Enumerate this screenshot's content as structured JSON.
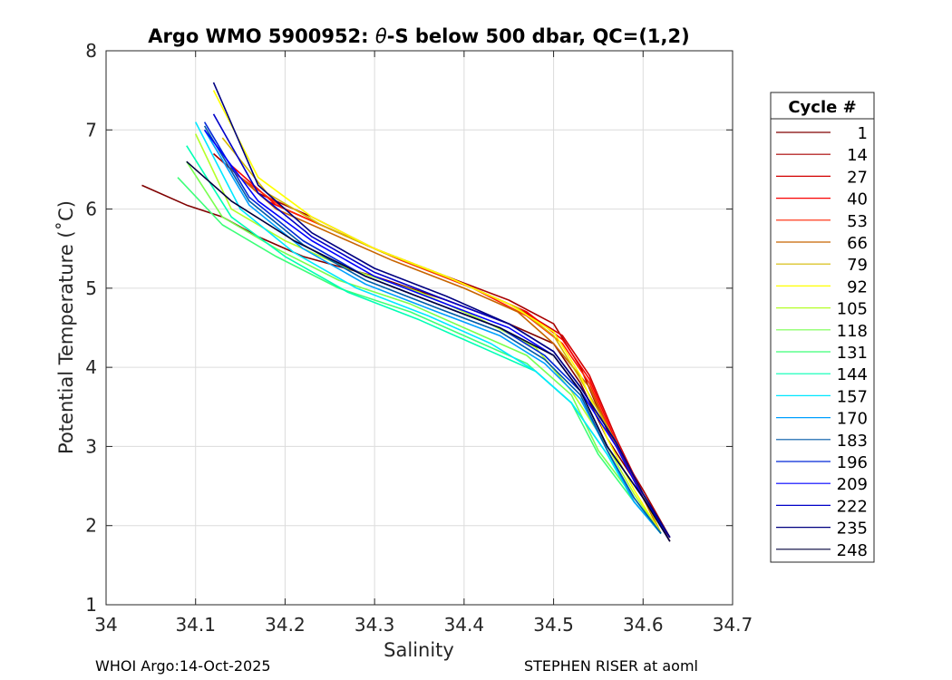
{
  "chart_data": {
    "type": "line",
    "title": "Argo WMO 5900952: θ-S below 500 dbar,  QC=(1,2)",
    "title_parts": {
      "prefix": "Argo WMO 5900952: ",
      "symbol": "θ",
      "suffix": "-S below 500 dbar,  QC=(1,2)"
    },
    "xlabel": "Salinity",
    "ylabel": "Potential Temperature (˚C)",
    "xlim": [
      34,
      34.7
    ],
    "ylim": [
      1,
      8
    ],
    "xticks": [
      "34",
      "34.1",
      "34.2",
      "34.3",
      "34.4",
      "34.5",
      "34.6",
      "34.7"
    ],
    "yticks": [
      "1",
      "2",
      "3",
      "4",
      "5",
      "6",
      "7",
      "8"
    ],
    "grid": true,
    "legend": {
      "title": "Cycle #",
      "placement": "right-outside",
      "entries": [
        {
          "label": "1",
          "color": "#800000"
        },
        {
          "label": "14",
          "color": "#a80000"
        },
        {
          "label": "27",
          "color": "#d20000"
        },
        {
          "label": "40",
          "color": "#fa0000"
        },
        {
          "label": "53",
          "color": "#ff2400"
        },
        {
          "label": "66",
          "color": "#c86400"
        },
        {
          "label": "79",
          "color": "#d4b800"
        },
        {
          "label": "92",
          "color": "#ffff00"
        },
        {
          "label": "105",
          "color": "#b4ff28"
        },
        {
          "label": "118",
          "color": "#78ff50"
        },
        {
          "label": "131",
          "color": "#3cff78"
        },
        {
          "label": "144",
          "color": "#00ffb4"
        },
        {
          "label": "157",
          "color": "#00e8ff"
        },
        {
          "label": "170",
          "color": "#00a0ff"
        },
        {
          "label": "183",
          "color": "#005aa8"
        },
        {
          "label": "196",
          "color": "#0028d8"
        },
        {
          "label": "209",
          "color": "#0000ff"
        },
        {
          "label": "222",
          "color": "#0000c8"
        },
        {
          "label": "235",
          "color": "#000080"
        },
        {
          "label": "248",
          "color": "#00003c"
        }
      ]
    },
    "series": [
      {
        "name": "cycle 1",
        "color": "#800000",
        "x": [
          34.04,
          34.09,
          34.13,
          34.17,
          34.22,
          34.3,
          34.38,
          34.45,
          34.5,
          34.53,
          34.56,
          34.6,
          34.63
        ],
        "y": [
          6.3,
          6.05,
          5.9,
          5.65,
          5.4,
          5.15,
          4.85,
          4.55,
          4.3,
          3.8,
          3.1,
          2.4,
          1.8
        ]
      },
      {
        "name": "cycle 14",
        "color": "#a80000",
        "x": [
          34.12,
          34.17,
          34.23,
          34.3,
          34.38,
          34.45,
          34.5,
          34.53,
          34.56,
          34.6,
          34.63
        ],
        "y": [
          6.7,
          6.2,
          5.9,
          5.5,
          5.15,
          4.85,
          4.55,
          4.0,
          3.2,
          2.45,
          1.85
        ]
      },
      {
        "name": "cycle 27",
        "color": "#d20000",
        "x": [
          34.13,
          34.18,
          34.24,
          34.31,
          34.39,
          34.46,
          34.51,
          34.54,
          34.57,
          34.6,
          34.63
        ],
        "y": [
          6.6,
          6.1,
          5.8,
          5.45,
          5.1,
          4.75,
          4.4,
          3.9,
          3.1,
          2.4,
          1.85
        ]
      },
      {
        "name": "cycle 40",
        "color": "#fa0000",
        "x": [
          34.14,
          34.19,
          34.25,
          34.32,
          34.4,
          34.47,
          34.51,
          34.54,
          34.57,
          34.6,
          34.63
        ],
        "y": [
          6.55,
          6.05,
          5.75,
          5.4,
          5.05,
          4.7,
          4.35,
          3.85,
          3.05,
          2.35,
          1.85
        ]
      },
      {
        "name": "cycle 53",
        "color": "#ff2400",
        "x": [
          34.15,
          34.2,
          34.26,
          34.33,
          34.41,
          34.47,
          34.51,
          34.54,
          34.57,
          34.6,
          34.63
        ],
        "y": [
          6.4,
          6.0,
          5.7,
          5.35,
          5.0,
          4.65,
          4.3,
          3.8,
          3.0,
          2.35,
          1.85
        ]
      },
      {
        "name": "cycle 66",
        "color": "#c86400",
        "x": [
          34.14,
          34.19,
          34.25,
          34.32,
          34.4,
          34.46,
          34.5,
          34.54,
          34.57,
          34.6,
          34.62
        ],
        "y": [
          6.5,
          6.0,
          5.7,
          5.35,
          5.0,
          4.7,
          4.3,
          3.75,
          3.0,
          2.35,
          1.9
        ]
      },
      {
        "name": "cycle 79",
        "color": "#d4b800",
        "x": [
          34.13,
          34.18,
          34.24,
          34.31,
          34.39,
          34.46,
          34.5,
          34.53,
          34.57,
          34.6,
          34.62
        ],
        "y": [
          6.9,
          6.2,
          5.8,
          5.45,
          5.1,
          4.75,
          4.4,
          3.85,
          3.05,
          2.4,
          1.9
        ]
      },
      {
        "name": "cycle 92",
        "color": "#ffff00",
        "x": [
          34.12,
          34.17,
          34.23,
          34.3,
          34.38,
          34.45,
          34.5,
          34.53,
          34.56,
          34.59,
          34.62
        ],
        "y": [
          7.5,
          6.4,
          5.9,
          5.5,
          5.15,
          4.8,
          4.45,
          3.9,
          3.1,
          2.45,
          1.9
        ]
      },
      {
        "name": "cycle 105",
        "color": "#b4ff28",
        "x": [
          34.1,
          34.14,
          34.2,
          34.27,
          34.35,
          34.42,
          34.48,
          34.52,
          34.56,
          34.59,
          34.62
        ],
        "y": [
          6.95,
          6.0,
          5.6,
          5.25,
          4.95,
          4.6,
          4.25,
          3.7,
          3.0,
          2.4,
          1.9
        ]
      },
      {
        "name": "cycle 118",
        "color": "#78ff50",
        "x": [
          34.09,
          34.13,
          34.19,
          34.26,
          34.34,
          34.41,
          34.47,
          34.52,
          34.55,
          34.59,
          34.62
        ],
        "y": [
          6.6,
          5.9,
          5.5,
          5.1,
          4.8,
          4.45,
          4.15,
          3.65,
          2.95,
          2.35,
          1.9
        ]
      },
      {
        "name": "cycle 131",
        "color": "#3cff78",
        "x": [
          34.08,
          34.13,
          34.19,
          34.26,
          34.34,
          34.41,
          34.47,
          34.52,
          34.55,
          34.59,
          34.62
        ],
        "y": [
          6.4,
          5.8,
          5.4,
          5.0,
          4.7,
          4.35,
          4.05,
          3.55,
          2.9,
          2.3,
          1.9
        ]
      },
      {
        "name": "cycle 144",
        "color": "#00ffb4",
        "x": [
          34.09,
          34.14,
          34.2,
          34.27,
          34.35,
          34.42,
          34.48,
          34.52,
          34.56,
          34.59,
          34.62
        ],
        "y": [
          6.8,
          5.9,
          5.4,
          4.95,
          4.6,
          4.25,
          3.95,
          3.55,
          2.9,
          2.3,
          1.9
        ]
      },
      {
        "name": "cycle 157",
        "color": "#00e8ff",
        "x": [
          34.1,
          34.15,
          34.21,
          34.28,
          34.36,
          34.43,
          34.48,
          34.52,
          34.56,
          34.59,
          34.62
        ],
        "y": [
          7.1,
          6.0,
          5.45,
          5.0,
          4.65,
          4.3,
          3.95,
          3.55,
          2.9,
          2.3,
          1.9
        ]
      },
      {
        "name": "cycle 170",
        "color": "#00a0ff",
        "x": [
          34.11,
          34.16,
          34.22,
          34.29,
          34.37,
          34.44,
          34.49,
          34.53,
          34.56,
          34.59,
          34.62
        ],
        "y": [
          7.0,
          6.05,
          5.5,
          5.05,
          4.7,
          4.4,
          4.05,
          3.6,
          2.95,
          2.3,
          1.9
        ]
      },
      {
        "name": "cycle 183",
        "color": "#005aa8",
        "x": [
          34.11,
          34.16,
          34.22,
          34.29,
          34.37,
          34.44,
          34.49,
          34.53,
          34.56,
          34.59,
          34.62
        ],
        "y": [
          7.05,
          6.1,
          5.55,
          5.1,
          4.75,
          4.45,
          4.1,
          3.65,
          2.95,
          2.35,
          1.9
        ]
      },
      {
        "name": "cycle 196",
        "color": "#0028d8",
        "x": [
          34.11,
          34.16,
          34.22,
          34.29,
          34.37,
          34.44,
          34.49,
          34.53,
          34.56,
          34.6,
          34.63
        ],
        "y": [
          7.1,
          6.15,
          5.6,
          5.15,
          4.8,
          4.5,
          4.15,
          3.7,
          3.0,
          2.35,
          1.85
        ]
      },
      {
        "name": "cycle 209",
        "color": "#0000ff",
        "x": [
          34.11,
          34.17,
          34.23,
          34.3,
          34.38,
          34.45,
          34.5,
          34.53,
          34.57,
          34.6,
          34.63
        ],
        "y": [
          7.0,
          6.1,
          5.6,
          5.15,
          4.8,
          4.5,
          4.15,
          3.7,
          3.0,
          2.35,
          1.85
        ]
      },
      {
        "name": "cycle 222",
        "color": "#0000c8",
        "x": [
          34.12,
          34.17,
          34.23,
          34.3,
          34.38,
          34.45,
          34.5,
          34.53,
          34.57,
          34.6,
          34.63
        ],
        "y": [
          7.2,
          6.2,
          5.65,
          5.2,
          4.85,
          4.55,
          4.2,
          3.75,
          3.05,
          2.4,
          1.85
        ]
      },
      {
        "name": "cycle 235",
        "color": "#000080",
        "x": [
          34.12,
          34.17,
          34.23,
          34.3,
          34.38,
          34.45,
          34.5,
          34.53,
          34.57,
          34.6,
          34.63
        ],
        "y": [
          7.6,
          6.3,
          5.7,
          5.25,
          4.9,
          4.55,
          4.2,
          3.75,
          3.05,
          2.4,
          1.85
        ]
      },
      {
        "name": "cycle 248",
        "color": "#00003c",
        "x": [
          34.09,
          34.14,
          34.21,
          34.29,
          34.37,
          34.44,
          34.5,
          34.53,
          34.56,
          34.6,
          34.63
        ],
        "y": [
          6.6,
          6.1,
          5.6,
          5.15,
          4.8,
          4.5,
          4.15,
          3.7,
          3.0,
          2.35,
          1.8
        ]
      }
    ]
  },
  "footer": {
    "left": "WHOI Argo:14-Oct-2025",
    "right": "STEPHEN RISER at aoml"
  }
}
